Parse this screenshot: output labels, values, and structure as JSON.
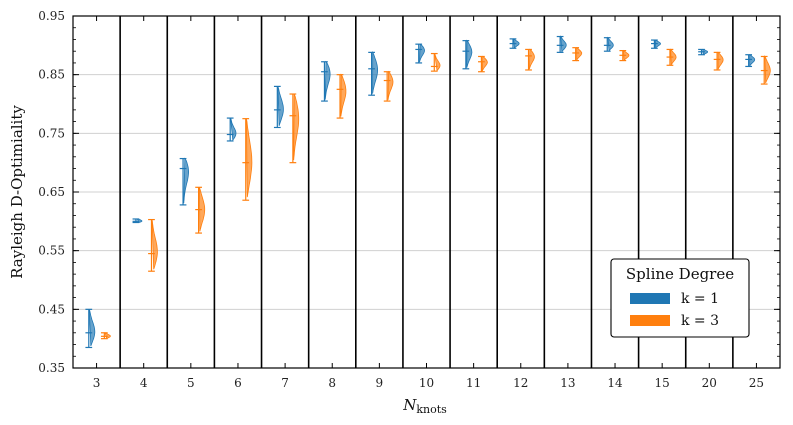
{
  "chart_data": {
    "type": "violin",
    "xlabel": "N",
    "xlabel_sub": "knots",
    "ylabel": "Rayleigh D-Optimiality",
    "ylim": [
      0.35,
      0.95
    ],
    "yticks": [
      "0.35",
      "0.45",
      "0.55",
      "0.65",
      "0.75",
      "0.85",
      "0.95"
    ],
    "grid": true,
    "categories": [
      "3",
      "4",
      "5",
      "6",
      "7",
      "8",
      "9",
      "10",
      "11",
      "12",
      "13",
      "14",
      "15",
      "20",
      "25"
    ],
    "legend": {
      "title": "Spline Degree",
      "placement": "lower-right",
      "entries": [
        "k = 1",
        "k = 3"
      ]
    },
    "series": [
      {
        "name": "k = 1",
        "color": "#1f77b4",
        "violins": [
          {
            "min": 0.385,
            "median": 0.41,
            "max": 0.45
          },
          {
            "min": 0.598,
            "median": 0.6,
            "max": 0.604
          },
          {
            "min": 0.628,
            "median": 0.69,
            "max": 0.707
          },
          {
            "min": 0.737,
            "median": 0.748,
            "max": 0.776
          },
          {
            "min": 0.76,
            "median": 0.79,
            "max": 0.83
          },
          {
            "min": 0.805,
            "median": 0.855,
            "max": 0.872
          },
          {
            "min": 0.815,
            "median": 0.86,
            "max": 0.888
          },
          {
            "min": 0.87,
            "median": 0.893,
            "max": 0.902
          },
          {
            "min": 0.86,
            "median": 0.89,
            "max": 0.908
          },
          {
            "min": 0.895,
            "median": 0.903,
            "max": 0.911
          },
          {
            "min": 0.888,
            "median": 0.9,
            "max": 0.915
          },
          {
            "min": 0.89,
            "median": 0.9,
            "max": 0.913
          },
          {
            "min": 0.895,
            "median": 0.903,
            "max": 0.909
          },
          {
            "min": 0.884,
            "median": 0.889,
            "max": 0.893
          },
          {
            "min": 0.864,
            "median": 0.876,
            "max": 0.884
          }
        ]
      },
      {
        "name": "k = 3",
        "color": "#ff7f0e",
        "violins": [
          {
            "min": 0.4,
            "median": 0.404,
            "max": 0.41
          },
          {
            "min": 0.515,
            "median": 0.545,
            "max": 0.603
          },
          {
            "min": 0.58,
            "median": 0.62,
            "max": 0.658
          },
          {
            "min": 0.636,
            "median": 0.7,
            "max": 0.775
          },
          {
            "min": 0.7,
            "median": 0.78,
            "max": 0.817
          },
          {
            "min": 0.776,
            "median": 0.825,
            "max": 0.85
          },
          {
            "min": 0.805,
            "median": 0.84,
            "max": 0.855
          },
          {
            "min": 0.856,
            "median": 0.864,
            "max": 0.886
          },
          {
            "min": 0.855,
            "median": 0.872,
            "max": 0.881
          },
          {
            "min": 0.858,
            "median": 0.882,
            "max": 0.893
          },
          {
            "min": 0.874,
            "median": 0.887,
            "max": 0.896
          },
          {
            "min": 0.874,
            "median": 0.883,
            "max": 0.891
          },
          {
            "min": 0.866,
            "median": 0.88,
            "max": 0.893
          },
          {
            "min": 0.858,
            "median": 0.876,
            "max": 0.888
          },
          {
            "min": 0.834,
            "median": 0.857,
            "max": 0.881
          }
        ]
      }
    ]
  }
}
